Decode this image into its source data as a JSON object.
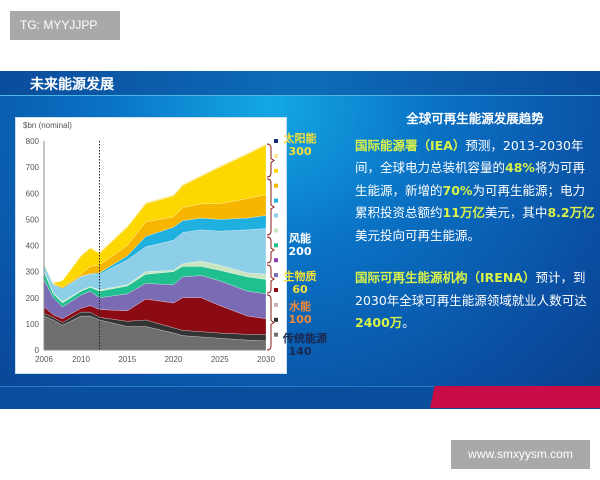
{
  "watermarks": {
    "top": "TG: MYYJJPP",
    "bottom": "www.smxyysm.com"
  },
  "slide": {
    "header": "未来能源发展"
  },
  "panel": {
    "title": "全球可再生能源发展趋势",
    "p1": [
      {
        "t": "国际能源署（IEA）",
        "hl": true
      },
      {
        "t": "预测，2013-2030年间，全球电力总装机容量的",
        "hl": false
      },
      {
        "t": "48%",
        "hl": true
      },
      {
        "t": "将为可再生能源，新增的",
        "hl": false
      },
      {
        "t": "70%",
        "hl": true
      },
      {
        "t": "为可再生能源；电力累积投资总额约",
        "hl": false
      },
      {
        "t": "11万亿",
        "hl": true
      },
      {
        "t": "美元，其中",
        "hl": false
      },
      {
        "t": "8.2万亿",
        "hl": true
      },
      {
        "t": "美元投向可再生能源。",
        "hl": false
      }
    ],
    "p2": [
      {
        "t": "国际可再生能源机构（IRENA）",
        "hl": true
      },
      {
        "t": "预计，到2030年全球可再生能源领域就业人数可达",
        "hl": false
      },
      {
        "t": "2400万",
        "hl": true
      },
      {
        "t": "。",
        "hl": false
      }
    ]
  },
  "chart_data": {
    "type": "area",
    "stacked": true,
    "ylabel": "$bn (nominal)",
    "ylim": [
      0,
      800
    ],
    "yticks": [
      0,
      100,
      200,
      300,
      400,
      500,
      600,
      700,
      800
    ],
    "xticks": [
      2006,
      2010,
      2015,
      2020,
      2025,
      2030
    ],
    "xlim": [
      2006,
      2030
    ],
    "projection_marker_year": 2012,
    "x": [
      2006,
      2007,
      2008,
      2010,
      2011,
      2012,
      2015,
      2017,
      2020,
      2021,
      2023,
      2025,
      2028,
      2030
    ],
    "series": [
      {
        "color": "#6e6e6e",
        "values": [
          130,
          115,
          95,
          130,
          130,
          115,
          90,
          90,
          65,
          55,
          50,
          45,
          38,
          35
        ]
      },
      {
        "color": "#333333",
        "values": [
          10,
          10,
          10,
          15,
          15,
          10,
          20,
          25,
          20,
          20,
          20,
          20,
          22,
          25
        ]
      },
      {
        "color": "#8b0a14",
        "values": [
          25,
          10,
          15,
          15,
          25,
          30,
          40,
          80,
          95,
          125,
          130,
          105,
          70,
          60
        ]
      },
      {
        "color": "#7b6bb5",
        "values": [
          105,
          65,
          45,
          50,
          55,
          45,
          65,
          60,
          70,
          80,
          85,
          95,
          95,
          95
        ]
      },
      {
        "color": "#1fbf8f",
        "values": [
          30,
          15,
          15,
          15,
          15,
          25,
          30,
          35,
          50,
          40,
          35,
          40,
          55,
          55
        ]
      },
      {
        "color": "#c8e6c0",
        "values": [
          5,
          3,
          5,
          3,
          3,
          5,
          5,
          10,
          5,
          10,
          20,
          20,
          15,
          20
        ]
      },
      {
        "color": "#8ecfe8",
        "values": [
          20,
          32,
          45,
          52,
          47,
          60,
          95,
          95,
          115,
          120,
          120,
          130,
          165,
          175
        ]
      },
      {
        "color": "#1fb0e0",
        "values": [
          3,
          2,
          5,
          2,
          2,
          5,
          15,
          40,
          50,
          45,
          45,
          45,
          45,
          50
        ]
      },
      {
        "color": "#f7b500",
        "values": [
          2,
          2,
          5,
          8,
          28,
          30,
          40,
          55,
          40,
          50,
          55,
          60,
          75,
          80
        ]
      },
      {
        "color": "#fcd800",
        "values": [
          2,
          2,
          25,
          70,
          70,
          45,
          70,
          70,
          80,
          85,
          105,
          140,
          170,
          190
        ]
      },
      {
        "color": "#fbe9a0",
        "values": [
          3,
          3,
          3,
          3,
          3,
          5,
          5,
          5,
          5,
          5,
          5,
          5,
          5,
          5
        ]
      }
    ],
    "legend_squares": [
      "#1a2a7a",
      "#fbe9a0",
      "#fcd800",
      "#f7b500",
      "#1fb0e0",
      "#8ecfe8",
      "#c8e6c0",
      "#1fbf8f",
      "#8a3fb0",
      "#7b6bb5",
      "#8b0a14",
      "#d0b0b0",
      "#333333",
      "#6e6e6e"
    ],
    "annotations": [
      {
        "label": "太阳能",
        "value": "300",
        "color": "#f5e03a"
      },
      {
        "label": "风能",
        "value": "200",
        "color": "#ffffff"
      },
      {
        "label": "生物质",
        "value": "60",
        "color": "#f5e03a"
      },
      {
        "label": "水能",
        "value": "100",
        "color": "#f08a3a"
      },
      {
        "label": "传统能源",
        "value": "140",
        "color": "#1a2850"
      }
    ]
  }
}
